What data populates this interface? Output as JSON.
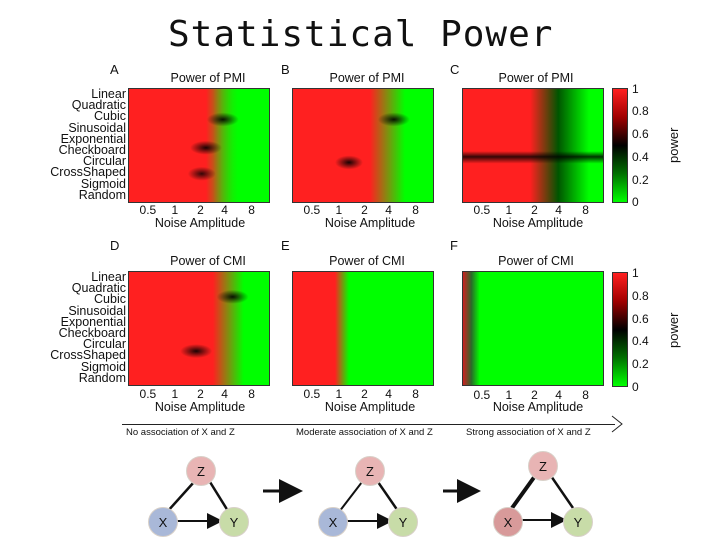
{
  "title": "Statistical Power",
  "row_labels": [
    "Linear",
    "Quadratic",
    "Cubic",
    "Sinusoidal",
    "Exponential",
    "Checkboard",
    "Circular",
    "CrossShaped",
    "Sigmoid",
    "Random"
  ],
  "x_ticks": [
    "0.5",
    "1",
    "2",
    "4",
    "8"
  ],
  "x_label": "Noise Amplitude",
  "panels": [
    {
      "letter": "A",
      "title": "Power of PMI"
    },
    {
      "letter": "B",
      "title": "Power of PMI"
    },
    {
      "letter": "C",
      "title": "Power of PMI"
    },
    {
      "letter": "D",
      "title": "Power of CMI"
    },
    {
      "letter": "E",
      "title": "Power of CMI"
    },
    {
      "letter": "F",
      "title": "Power of CMI"
    }
  ],
  "colorbar": {
    "label": "power",
    "ticks": [
      "1",
      "0.8",
      "0.6",
      "0.4",
      "0.2",
      "0"
    ]
  },
  "colors": {
    "high": "#ff2020",
    "mid": "#000000",
    "low": "#00ff00",
    "node_z": "#e8b4b4",
    "node_x": "#a9b8d8",
    "node_y": "#c8dca8",
    "node_x_strong": "#d89a9a"
  },
  "associations": [
    "No association of X and Z",
    "Moderate association of X and Z",
    "Strong association of X and Z"
  ],
  "node_labels": {
    "z": "Z",
    "x": "X",
    "y": "Y"
  }
}
